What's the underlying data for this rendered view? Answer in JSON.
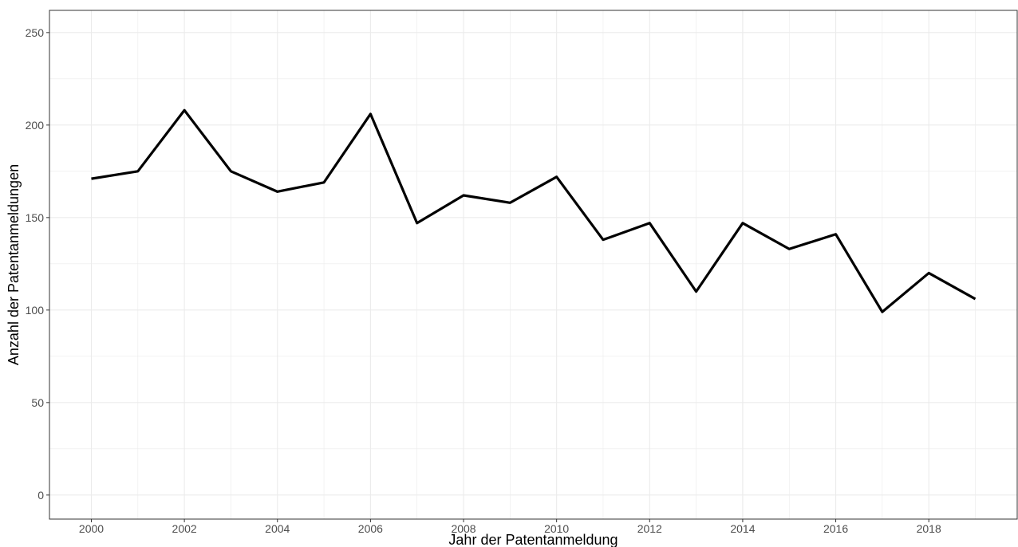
{
  "chart_data": {
    "type": "line",
    "title": "",
    "xlabel": "Jahr der Patentanmeldung",
    "ylabel": "Anzahl der Patentanmeldungen",
    "x": [
      2000,
      2001,
      2002,
      2003,
      2004,
      2005,
      2006,
      2007,
      2008,
      2009,
      2010,
      2011,
      2012,
      2013,
      2014,
      2015,
      2016,
      2017,
      2018,
      2019
    ],
    "series": [
      {
        "values": [
          171,
          175,
          208,
          175,
          164,
          169,
          206,
          147,
          162,
          158,
          172,
          138,
          147,
          110,
          147,
          133,
          141,
          99,
          120,
          106
        ]
      }
    ],
    "xlim": [
      1999.1,
      2019.9
    ],
    "ylim": [
      -13,
      262
    ],
    "x_ticks": [
      2000,
      2002,
      2004,
      2006,
      2008,
      2010,
      2012,
      2014,
      2016,
      2018
    ],
    "x_tick_labels": [
      "2000",
      "2002",
      "2004",
      "2006",
      "2008",
      "2010",
      "2012",
      "2014",
      "2016",
      "2018"
    ],
    "y_ticks": [
      0,
      50,
      100,
      150,
      200,
      250
    ],
    "y_tick_labels": [
      "0",
      "50",
      "100",
      "150",
      "200",
      "250"
    ],
    "grid": true,
    "line_color": "#000000",
    "grid_color": "#ebebeb",
    "panel_border_color": "#333333"
  }
}
